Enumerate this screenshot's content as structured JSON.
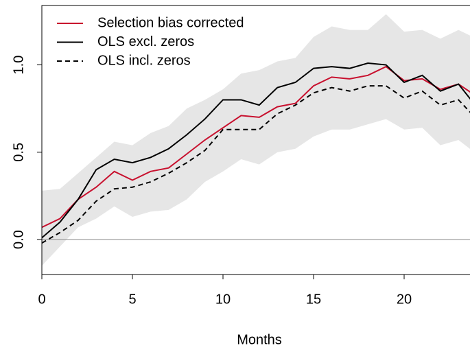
{
  "chart_data": {
    "type": "line",
    "xlabel": "Months",
    "x": [
      0,
      1,
      2,
      3,
      4,
      5,
      6,
      7,
      8,
      9,
      10,
      11,
      12,
      13,
      14,
      15,
      16,
      17,
      18,
      19,
      20,
      21,
      22,
      23,
      24
    ],
    "series": [
      {
        "name": "Selection bias corrected",
        "color": "#c8102e",
        "dash": "solid",
        "values": [
          0.07,
          0.12,
          0.23,
          0.3,
          0.39,
          0.34,
          0.39,
          0.41,
          0.49,
          0.57,
          0.64,
          0.71,
          0.7,
          0.76,
          0.78,
          0.88,
          0.93,
          0.92,
          0.94,
          0.99,
          0.91,
          0.92,
          0.86,
          0.89,
          0.82
        ]
      },
      {
        "name": "OLS excl. zeros",
        "color": "#000000",
        "dash": "solid",
        "values": [
          0.01,
          0.1,
          0.23,
          0.4,
          0.46,
          0.44,
          0.47,
          0.52,
          0.6,
          0.69,
          0.8,
          0.8,
          0.77,
          0.87,
          0.9,
          0.98,
          0.99,
          0.98,
          1.01,
          1.0,
          0.9,
          0.94,
          0.85,
          0.89,
          0.76
        ]
      },
      {
        "name": "OLS incl. zeros",
        "color": "#000000",
        "dash": "dashed",
        "values": [
          -0.02,
          0.04,
          0.11,
          0.22,
          0.29,
          0.3,
          0.33,
          0.38,
          0.44,
          0.51,
          0.63,
          0.63,
          0.63,
          0.72,
          0.77,
          0.84,
          0.87,
          0.85,
          0.88,
          0.88,
          0.81,
          0.85,
          0.77,
          0.8,
          0.69
        ]
      }
    ],
    "band": {
      "color": "#e6e6e6",
      "upper": [
        0.28,
        0.29,
        0.38,
        0.47,
        0.56,
        0.54,
        0.61,
        0.65,
        0.75,
        0.8,
        0.86,
        0.95,
        0.97,
        1.02,
        1.04,
        1.16,
        1.22,
        1.2,
        1.2,
        1.29,
        1.19,
        1.2,
        1.15,
        1.2,
        1.15
      ],
      "lower": [
        -0.15,
        -0.04,
        0.07,
        0.12,
        0.19,
        0.13,
        0.16,
        0.17,
        0.23,
        0.33,
        0.39,
        0.46,
        0.43,
        0.5,
        0.52,
        0.59,
        0.63,
        0.63,
        0.66,
        0.69,
        0.63,
        0.64,
        0.54,
        0.57,
        0.49
      ]
    },
    "hline": 0,
    "xlim": [
      0,
      23.64
    ],
    "ylim": [
      -0.2,
      1.34
    ],
    "xticks": [
      0,
      5,
      10,
      15,
      20
    ],
    "yticks": [
      {
        "value": 0,
        "label": "0.0"
      },
      0.5,
      {
        "value": 1,
        "label": "1.0"
      }
    ],
    "legend": "top-left"
  }
}
